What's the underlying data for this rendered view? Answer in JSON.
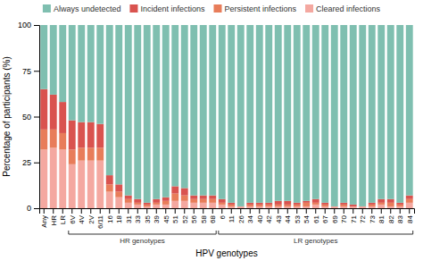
{
  "chart_data": {
    "type": "bar",
    "stacked": true,
    "categories": [
      "Any",
      "HR",
      "LR",
      "6V",
      "4V",
      "2V",
      "6/11",
      "16",
      "18",
      "31",
      "33",
      "35",
      "39",
      "45",
      "51",
      "52",
      "56",
      "58",
      "68",
      "6",
      "11",
      "26",
      "34",
      "40",
      "42",
      "43",
      "44",
      "53",
      "54",
      "61",
      "67",
      "69",
      "70",
      "71",
      "72",
      "73",
      "81",
      "82",
      "83",
      "84"
    ],
    "series": [
      {
        "name": "Cleared infections",
        "color": "#f4a8a0",
        "values": [
          32,
          33,
          32,
          24,
          26,
          26,
          26,
          9,
          6,
          3,
          2,
          1,
          2,
          2,
          4,
          4,
          3,
          3,
          3,
          2,
          1,
          1,
          1,
          1,
          1,
          1,
          1,
          1,
          1,
          2,
          1,
          1,
          1,
          1,
          1,
          1,
          2,
          1,
          1,
          3
        ]
      },
      {
        "name": "Persistent infections",
        "color": "#e87d5a",
        "values": [
          11,
          10,
          9,
          8,
          7,
          7,
          7,
          4,
          3,
          2,
          1,
          1,
          1,
          2,
          4,
          3,
          2,
          2,
          2,
          1,
          1,
          0,
          1,
          1,
          1,
          1,
          1,
          1,
          2,
          1,
          1,
          0,
          1,
          0,
          0,
          1,
          1,
          2,
          1,
          2
        ]
      },
      {
        "name": "Incident infections",
        "color": "#d9534f",
        "values": [
          22,
          19,
          17,
          16,
          14,
          14,
          13,
          5,
          4,
          2,
          2,
          1,
          2,
          2,
          4,
          4,
          2,
          2,
          2,
          2,
          1,
          0,
          1,
          1,
          1,
          2,
          2,
          1,
          1,
          2,
          1,
          0,
          1,
          1,
          0,
          1,
          2,
          2,
          1,
          2
        ]
      },
      {
        "name": "Always undetected",
        "color": "#7fbfb0",
        "values": [
          35,
          38,
          42,
          52,
          53,
          53,
          54,
          82,
          87,
          93,
          95,
          97,
          95,
          94,
          88,
          89,
          93,
          93,
          93,
          95,
          97,
          99,
          97,
          97,
          97,
          96,
          96,
          97,
          96,
          95,
          97,
          99,
          97,
          98,
          99,
          97,
          95,
          95,
          97,
          93
        ]
      }
    ],
    "xlabel": "HPV genotypes",
    "ylabel": "Percentage of participants (%)",
    "ylim": [
      0,
      100
    ],
    "yticks": [
      0,
      25,
      50,
      75,
      100
    ],
    "grid": false,
    "legend": "top",
    "annotations": [
      {
        "text": "HR genotypes",
        "from": "6V",
        "to": "68"
      },
      {
        "text": "LR genotypes",
        "from": "6",
        "to": "84"
      }
    ]
  }
}
